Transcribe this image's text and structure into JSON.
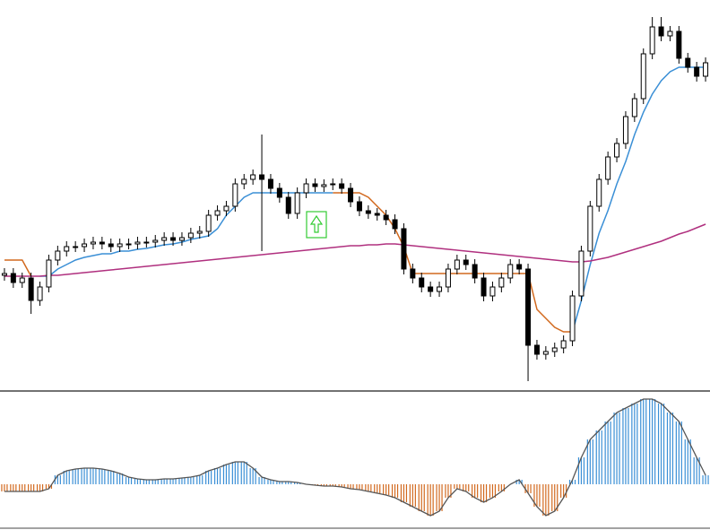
{
  "chart_data": [
    {
      "type": "candlestick",
      "ylim": [
        0,
        435
      ],
      "up_color": "#ffffff",
      "down_color": "#000000",
      "open": [
        128,
        130,
        120,
        125,
        100,
        115,
        145,
        155,
        160,
        160,
        163,
        165,
        163,
        160,
        163,
        163,
        165,
        165,
        167,
        170,
        167,
        170,
        175,
        177,
        195,
        200,
        205,
        230,
        235,
        240,
        235,
        225,
        215,
        197,
        220,
        230,
        227,
        229,
        230,
        225,
        210,
        200,
        197,
        195,
        190,
        180,
        135,
        125,
        115,
        110,
        115,
        135,
        145,
        140,
        125,
        105,
        115,
        125,
        140,
        135,
        50,
        40,
        43,
        47,
        55,
        105,
        155,
        205,
        235,
        260,
        275,
        305,
        325,
        375,
        405,
        395,
        400,
        370,
        360,
        350
      ],
      "high": [
        136,
        136,
        131,
        131,
        121,
        151,
        161,
        166,
        166,
        169,
        171,
        171,
        169,
        169,
        169,
        171,
        171,
        173,
        176,
        176,
        176,
        181,
        183,
        201,
        206,
        211,
        236,
        241,
        246,
        285,
        241,
        231,
        221,
        226,
        236,
        236,
        235,
        236,
        236,
        231,
        216,
        206,
        203,
        201,
        196,
        186,
        141,
        131,
        121,
        121,
        141,
        151,
        151,
        146,
        131,
        121,
        131,
        146,
        146,
        141,
        56,
        49,
        53,
        61,
        111,
        161,
        211,
        241,
        266,
        281,
        311,
        331,
        381,
        416,
        416,
        406,
        406,
        376,
        366,
        371
      ],
      "low": [
        122,
        114,
        114,
        85,
        94,
        109,
        139,
        149,
        154,
        154,
        157,
        157,
        154,
        154,
        157,
        157,
        159,
        159,
        161,
        161,
        161,
        164,
        169,
        171,
        189,
        194,
        199,
        224,
        229,
        155,
        219,
        209,
        191,
        191,
        214,
        221,
        221,
        223,
        219,
        204,
        194,
        191,
        189,
        184,
        174,
        129,
        119,
        109,
        104,
        104,
        109,
        129,
        134,
        119,
        99,
        99,
        109,
        119,
        129,
        10,
        34,
        34,
        37,
        41,
        49,
        99,
        149,
        199,
        229,
        254,
        269,
        299,
        319,
        369,
        389,
        389,
        364,
        354,
        344,
        344
      ],
      "close": [
        130,
        120,
        125,
        100,
        115,
        145,
        155,
        160,
        160,
        163,
        165,
        163,
        160,
        163,
        163,
        165,
        165,
        167,
        170,
        167,
        170,
        175,
        177,
        195,
        200,
        205,
        230,
        235,
        240,
        235,
        225,
        215,
        197,
        220,
        230,
        227,
        229,
        230,
        225,
        210,
        200,
        197,
        195,
        190,
        180,
        135,
        125,
        115,
        110,
        115,
        135,
        145,
        140,
        125,
        105,
        115,
        125,
        140,
        135,
        50,
        40,
        43,
        47,
        55,
        105,
        155,
        205,
        235,
        260,
        275,
        305,
        325,
        375,
        405,
        395,
        400,
        370,
        360,
        350,
        365
      ],
      "series": [
        {
          "color": "#d2691e",
          "values": [
            145,
            145,
            145,
            127,
            null,
            null,
            null,
            null,
            null,
            null,
            null,
            null,
            null,
            null,
            null,
            null,
            null,
            null,
            null,
            null,
            null,
            null,
            null,
            null,
            null,
            null,
            null,
            null,
            null,
            null,
            null,
            null,
            null,
            null,
            null,
            null,
            null,
            220,
            220,
            220,
            220,
            215,
            205,
            195,
            180,
            160,
            130,
            130,
            130,
            130,
            130,
            130,
            130,
            130,
            130,
            130,
            130,
            130,
            130,
            130,
            90,
            80,
            70,
            65,
            65,
            null,
            null,
            null,
            null,
            null,
            null,
            null,
            null,
            null,
            null,
            null,
            null,
            null,
            null,
            null
          ]
        },
        {
          "color": "#3a8fd6",
          "values": [
            null,
            null,
            null,
            null,
            127,
            127,
            135,
            140,
            145,
            148,
            150,
            152,
            152,
            155,
            155,
            157,
            158,
            160,
            162,
            163,
            165,
            168,
            170,
            172,
            180,
            195,
            205,
            215,
            220,
            220,
            220,
            220,
            220,
            220,
            220,
            220,
            220,
            220,
            null,
            null,
            null,
            null,
            null,
            null,
            null,
            null,
            null,
            null,
            null,
            null,
            null,
            null,
            null,
            null,
            null,
            null,
            null,
            null,
            null,
            null,
            null,
            null,
            null,
            null,
            65,
            100,
            140,
            175,
            200,
            230,
            255,
            285,
            310,
            330,
            345,
            355,
            360,
            360,
            360,
            360
          ]
        },
        {
          "color": "#b0307f",
          "values": [
            127,
            127,
            127,
            127,
            127,
            128,
            128,
            129,
            130,
            131,
            132,
            133,
            134,
            135,
            136,
            137,
            138,
            139,
            140,
            141,
            142,
            143,
            144,
            145,
            146,
            147,
            148,
            149,
            150,
            151,
            152,
            153,
            154,
            155,
            156,
            157,
            158,
            159,
            160,
            161,
            161,
            162,
            162,
            163,
            163,
            162,
            161,
            160,
            159,
            158,
            157,
            156,
            155,
            154,
            153,
            152,
            151,
            150,
            149,
            148,
            147,
            146,
            145,
            144,
            143,
            143,
            144,
            146,
            148,
            151,
            154,
            157,
            160,
            163,
            166,
            170,
            174,
            177,
            181,
            185
          ]
        }
      ]
    },
    {
      "type": "histogram",
      "ylim": [
        -50,
        100
      ],
      "positive_color": "#3a8fd6",
      "negative_color": "#d2691e",
      "outline_color": "#555555",
      "values": [
        -8,
        -8,
        -8,
        -8,
        -8,
        -5,
        10,
        15,
        17,
        18,
        18,
        17,
        15,
        12,
        8,
        6,
        5,
        5,
        6,
        6,
        7,
        8,
        10,
        15,
        18,
        22,
        25,
        25,
        18,
        8,
        5,
        3,
        3,
        2,
        0,
        -1,
        -2,
        -2,
        -3,
        -5,
        -6,
        -8,
        -10,
        -12,
        -15,
        -20,
        -25,
        -30,
        -35,
        -30,
        -15,
        -5,
        -8,
        -15,
        -20,
        -15,
        -8,
        0,
        5,
        -10,
        -25,
        -35,
        -30,
        -15,
        5,
        30,
        50,
        60,
        70,
        80,
        85,
        90,
        95,
        95,
        90,
        80,
        70,
        50,
        30,
        10
      ]
    }
  ]
}
